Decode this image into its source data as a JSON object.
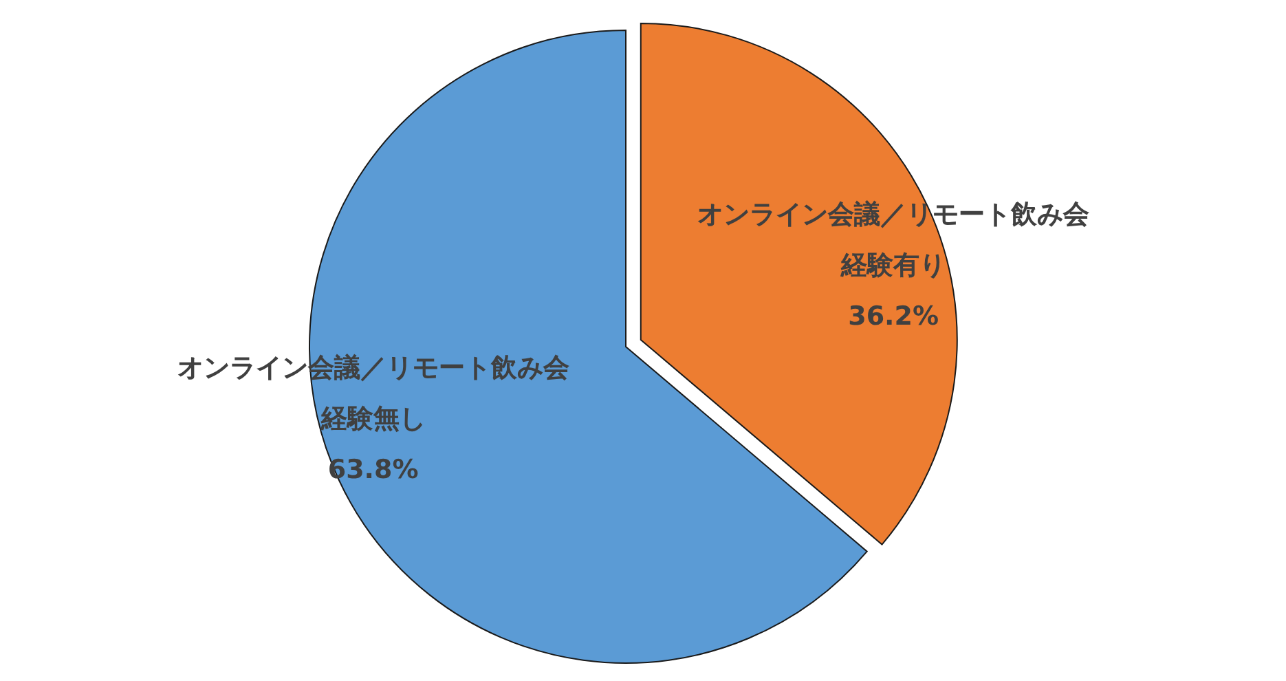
{
  "chart_data": {
    "type": "pie",
    "categories": [
      "オンライン会議／リモート飲み会経験有り",
      "オンライン会議／リモート飲み会経験無し"
    ],
    "values": [
      36.2,
      63.8
    ],
    "colors": [
      "#ed7d31",
      "#5b9bd5"
    ],
    "data_labels": true,
    "value_labels": [
      "36.2%",
      "63.8%"
    ]
  }
}
